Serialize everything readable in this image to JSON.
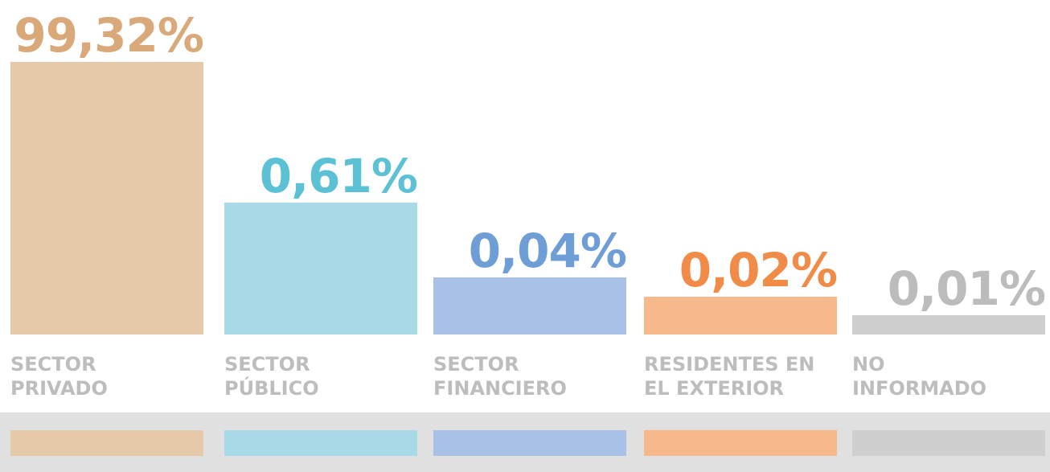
{
  "chart_data": {
    "type": "bar",
    "categories": [
      [
        "SECTOR",
        "PRIVADO"
      ],
      [
        "SECTOR",
        "PÚBLICO"
      ],
      [
        "SECTOR",
        "FINANCIERO"
      ],
      [
        "RESIDENTES EN",
        "EL EXTERIOR"
      ],
      [
        "NO",
        "INFORMADO"
      ]
    ],
    "values": [
      99.32,
      0.61,
      0.04,
      0.02,
      0.01
    ],
    "value_labels": [
      "99,32%",
      "0,61%",
      "0,04%",
      "0,02%",
      "0,01%"
    ],
    "colors": [
      "#e5c9a8",
      "#a8d9e6",
      "#a9c1e7",
      "#f7b98b",
      "#cfcfcf"
    ],
    "label_colors": [
      "#d9a97a",
      "#5cc1d5",
      "#6f9dd6",
      "#f08b48",
      "#bcbcbc"
    ],
    "ylim": [
      0.005,
      100
    ],
    "log": true
  }
}
